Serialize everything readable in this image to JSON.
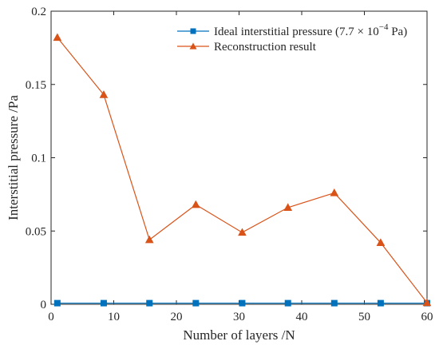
{
  "chart_data": {
    "type": "line",
    "title": "",
    "xlabel": "Number of layers /N",
    "ylabel": "Interstitial pressure /Pa",
    "xlim": [
      0,
      60
    ],
    "ylim": [
      0,
      0.2
    ],
    "xticks": [
      0,
      10,
      20,
      30,
      40,
      50,
      60
    ],
    "yticks": [
      0,
      0.05,
      0.1,
      0.15,
      0.2
    ],
    "xtick_labels": [
      "0",
      "10",
      "20",
      "30",
      "40",
      "50",
      "60"
    ],
    "ytick_labels": [
      "0",
      "0.05",
      "0.1",
      "0.15",
      "0.2"
    ],
    "grid": false,
    "legend_position": "top-right",
    "series": [
      {
        "name": "Ideal interstitial pressure (7.7 × 10⁻⁴ Pa)",
        "legend_parts": [
          "Ideal interstitial pressure (7.7 × 10",
          "−4",
          " Pa)"
        ],
        "marker": "square",
        "color": "#0072BD",
        "x": [
          1,
          8.4,
          15.7,
          23.1,
          30.5,
          37.8,
          45.2,
          52.6,
          60
        ],
        "y": [
          0.00077,
          0.00077,
          0.00077,
          0.00077,
          0.00077,
          0.00077,
          0.00077,
          0.00077,
          0.00077
        ]
      },
      {
        "name": "Reconstruction result",
        "marker": "triangle",
        "color": "#D95319",
        "x": [
          1,
          8.4,
          15.7,
          23.1,
          30.5,
          37.8,
          45.2,
          52.6,
          60
        ],
        "y": [
          0.182,
          0.143,
          0.044,
          0.068,
          0.049,
          0.066,
          0.076,
          0.042,
          0.001
        ]
      }
    ]
  }
}
